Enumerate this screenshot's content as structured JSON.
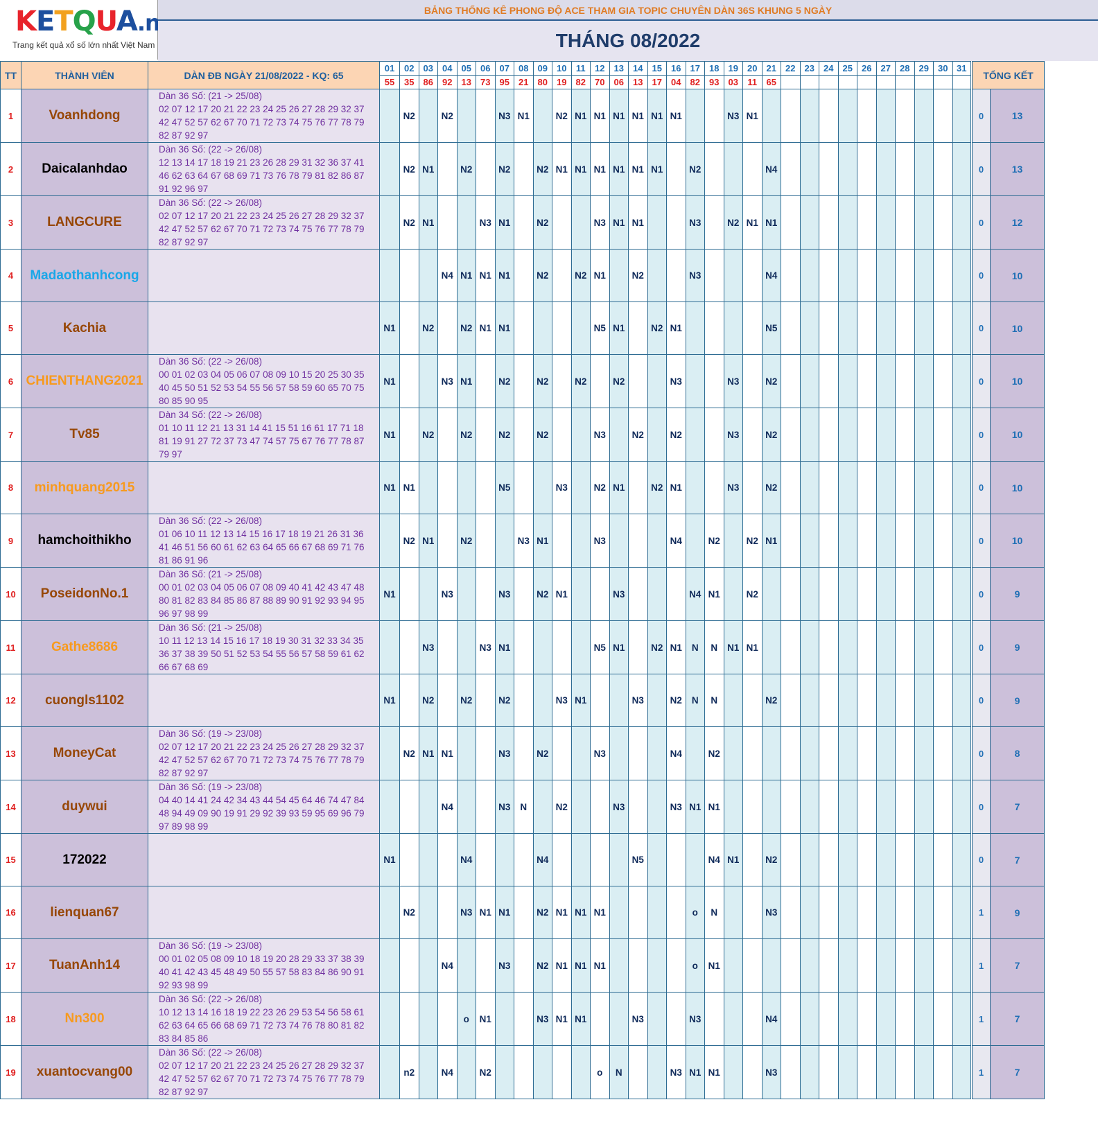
{
  "logo": {
    "brand_ket": "KETQUA",
    "brand_net": ".net",
    "tagline": "Trang kết quả xổ số lớn nhất Việt Nam"
  },
  "banner": "BẢNG THỐNG KÊ PHONG ĐỘ ACE THAM GIA TOPIC CHUYÊN DÀN 36S KHUNG 5 NGÀY",
  "month_title": "THÁNG 08/2022",
  "headers": {
    "tt": "TT",
    "member": "THÀNH VIÊN",
    "dan": "DÀN ĐB NGÀY 21/08/2022 - KQ: 65",
    "total": "TỔNG KẾT"
  },
  "days": [
    "01",
    "02",
    "03",
    "04",
    "05",
    "06",
    "07",
    "08",
    "09",
    "10",
    "11",
    "12",
    "13",
    "14",
    "15",
    "16",
    "17",
    "18",
    "19",
    "20",
    "21",
    "22",
    "23",
    "24",
    "25",
    "26",
    "27",
    "28",
    "29",
    "30",
    "31"
  ],
  "results": [
    "55",
    "35",
    "86",
    "92",
    "13",
    "73",
    "95",
    "21",
    "80",
    "19",
    "82",
    "70",
    "06",
    "13",
    "17",
    "04",
    "82",
    "93",
    "03",
    "11",
    "65",
    "",
    "",
    "",
    "",
    "",
    "",
    "",
    "",
    "",
    ""
  ],
  "rows": [
    {
      "tt": "1",
      "name": "Voanhdong",
      "color": "#974706",
      "dan": [
        "Dàn 36 Số: (21 -> 25/08)",
        "02 07 12 17 20 21 22 23 24 25 26 27 28 29 32 37",
        "42 47 52 57 62 67 70 71 72 73 74 75 76 77 78 79",
        "82 87 92 97"
      ],
      "cells": [
        "",
        "N2",
        "",
        "N2",
        "",
        "",
        "N3",
        "N1",
        "",
        "N2",
        "N1",
        "N1",
        "N1",
        "N1",
        "N1",
        "N1",
        "",
        "",
        "N3",
        "N1",
        "",
        "",
        "",
        "",
        "",
        "",
        "",
        "",
        "",
        "",
        ""
      ],
      "t1": "0",
      "t2": "13"
    },
    {
      "tt": "2",
      "name": "Daicalanhdao",
      "color": "#000000",
      "dan": [
        "Dàn 36 Số: (22 -> 26/08)",
        "12 13 14 17 18 19 21 23 26 28 29 31 32 36 37 41",
        "46 62 63 64 67 68 69 71 73 76 78 79 81 82 86 87",
        "91 92 96 97"
      ],
      "cells": [
        "",
        "N2",
        "N1",
        "",
        "N2",
        "",
        "N2",
        "",
        "N2",
        "N1",
        "N1",
        "N1",
        "N1",
        "N1",
        "N1",
        "",
        "N2",
        "",
        "",
        "",
        "N4",
        "",
        "",
        "",
        "",
        "",
        "",
        "",
        "",
        "",
        ""
      ],
      "t1": "0",
      "t2": "13"
    },
    {
      "tt": "3",
      "name": "LANGCURE",
      "color": "#974706",
      "dan": [
        "Dàn 36 Số: (22 -> 26/08)",
        "02 07 12 17 20 21 22 23 24 25 26 27 28 29 32 37",
        "42 47 52 57 62 67 70 71 72 73 74 75 76 77 78 79",
        "82 87 92 97"
      ],
      "cells": [
        "",
        "N2",
        "N1",
        "",
        "",
        "N3",
        "N1",
        "",
        "N2",
        "",
        "",
        "N3",
        "N1",
        "N1",
        "",
        "",
        "N3",
        "",
        "N2",
        "N1",
        "N1",
        "",
        "",
        "",
        "",
        "",
        "",
        "",
        "",
        "",
        ""
      ],
      "t1": "0",
      "t2": "12"
    },
    {
      "tt": "4",
      "name": "Madaothanhcong",
      "color": "#1aa7e8",
      "dan": [],
      "cells": [
        "",
        "",
        "",
        "N4",
        "N1",
        "N1",
        "N1",
        "",
        "N2",
        "",
        "N2",
        "N1",
        "",
        "N2",
        "",
        "",
        "N3",
        "",
        "",
        "",
        "N4",
        "",
        "",
        "",
        "",
        "",
        "",
        "",
        "",
        "",
        ""
      ],
      "t1": "0",
      "t2": "10"
    },
    {
      "tt": "5",
      "name": "Kachia",
      "color": "#974706",
      "dan": [],
      "cells": [
        "N1",
        "",
        "N2",
        "",
        "N2",
        "N1",
        "N1",
        "",
        "",
        "",
        "",
        "N5",
        "N1",
        "",
        "N2",
        "N1",
        "",
        "",
        "",
        "",
        "N5",
        "",
        "",
        "",
        "",
        "",
        "",
        "",
        "",
        "",
        ""
      ],
      "t1": "0",
      "t2": "10"
    },
    {
      "tt": "6",
      "name": "CHIENTHANG2021",
      "color": "#f79a1e",
      "dan": [
        "Dàn 36 Số: (22 -> 26/08)",
        "00 01 02 03 04 05 06 07 08 09 10 15 20 25 30 35",
        "40 45 50 51 52 53 54 55 56 57 58 59 60 65 70 75",
        "80 85 90 95"
      ],
      "cells": [
        "N1",
        "",
        "",
        "N3",
        "N1",
        "",
        "N2",
        "",
        "N2",
        "",
        "N2",
        "",
        "N2",
        "",
        "",
        "N3",
        "",
        "",
        "N3",
        "",
        "N2",
        "",
        "",
        "",
        "",
        "",
        "",
        "",
        "",
        "",
        ""
      ],
      "t1": "0",
      "t2": "10"
    },
    {
      "tt": "7",
      "name": "Tv85",
      "color": "#974706",
      "dan": [
        "Dàn 34 Số: (22 -> 26/08)",
        "01 10 11 12 21 13 31 14 41 15 51 16 61 17 71 18",
        "81 19 91 27 72 37 73 47 74 57 75 67 76 77 78 87",
        "79 97"
      ],
      "cells": [
        "N1",
        "",
        "N2",
        "",
        "N2",
        "",
        "N2",
        "",
        "N2",
        "",
        "",
        "N3",
        "",
        "N2",
        "",
        "N2",
        "",
        "",
        "N3",
        "",
        "N2",
        "",
        "",
        "",
        "",
        "",
        "",
        "",
        "",
        "",
        ""
      ],
      "t1": "0",
      "t2": "10"
    },
    {
      "tt": "8",
      "name": "minhquang2015",
      "color": "#f79a1e",
      "dan": [],
      "cells": [
        "N1",
        "N1",
        "",
        "",
        "",
        "",
        "N5",
        "",
        "",
        "N3",
        "",
        "N2",
        "N1",
        "",
        "N2",
        "N1",
        "",
        "",
        "N3",
        "",
        "N2",
        "",
        "",
        "",
        "",
        "",
        "",
        "",
        "",
        "",
        ""
      ],
      "t1": "0",
      "t2": "10"
    },
    {
      "tt": "9",
      "name": "hamchoithikho",
      "color": "#000000",
      "dan": [
        "Dàn 36 Số: (22 -> 26/08)",
        "01 06 10 11 12 13 14 15 16 17 18 19 21 26 31 36",
        "41 46 51 56 60 61 62 63 64 65 66 67 68 69 71 76",
        "81 86 91 96"
      ],
      "cells": [
        "",
        "N2",
        "N1",
        "",
        "N2",
        "",
        "",
        "N3",
        "N1",
        "",
        "",
        "N3",
        "",
        "",
        "",
        "N4",
        "",
        "N2",
        "",
        "N2",
        "N1",
        "",
        "",
        "",
        "",
        "",
        "",
        "",
        "",
        "",
        ""
      ],
      "t1": "0",
      "t2": "10"
    },
    {
      "tt": "10",
      "name": "PoseidonNo.1",
      "color": "#974706",
      "dan": [
        "Dàn 36 Số: (21 -> 25/08)",
        "00 01 02 03 04 05 06 07 08 09 40 41 42 43 47 48",
        "80 81 82 83 84 85 86 87 88 89 90 91 92 93 94 95",
        "96 97 98 99"
      ],
      "cells": [
        "N1",
        "",
        "",
        "N3",
        "",
        "",
        "N3",
        "",
        "N2",
        "N1",
        "",
        "",
        "N3",
        "",
        "",
        "",
        "N4",
        "N1",
        "",
        "N2",
        "",
        "",
        "",
        "",
        "",
        "",
        "",
        "",
        "",
        "",
        ""
      ],
      "t1": "0",
      "t2": "9"
    },
    {
      "tt": "11",
      "name": "Gathe8686",
      "color": "#f79a1e",
      "dan": [
        "Dàn 36 Số: (21 -> 25/08)",
        "10 11 12 13 14 15 16 17 18 19 30 31 32 33 34 35",
        "36 37 38 39 50 51 52 53 54 55 56 57 58 59 61 62",
        "66 67 68 69"
      ],
      "cells": [
        "",
        "",
        "N3",
        "",
        "",
        "N3",
        "N1",
        "",
        "",
        "",
        "",
        "N5",
        "N1",
        "",
        "N2",
        "N1",
        "N",
        "N",
        "N1",
        "N1",
        "",
        "",
        "",
        "",
        "",
        "",
        "",
        "",
        "",
        "",
        ""
      ],
      "t1": "0",
      "t2": "9"
    },
    {
      "tt": "12",
      "name": "cuongls1102",
      "color": "#974706",
      "dan": [],
      "cells": [
        "N1",
        "",
        "N2",
        "",
        "N2",
        "",
        "N2",
        "",
        "",
        "N3",
        "N1",
        "",
        "",
        "N3",
        "",
        "N2",
        "N",
        "N",
        "",
        "",
        "N2",
        "",
        "",
        "",
        "",
        "",
        "",
        "",
        "",
        "",
        ""
      ],
      "t1": "0",
      "t2": "9"
    },
    {
      "tt": "13",
      "name": "MoneyCat",
      "color": "#974706",
      "dan": [
        "Dàn 36 Số: (19 -> 23/08)",
        "02 07 12 17 20 21 22 23 24 25 26 27 28 29 32 37",
        "42 47 52 57 62 67 70 71 72 73 74 75 76 77 78 79",
        "82 87 92 97"
      ],
      "cells": [
        "",
        "N2",
        "N1",
        "N1",
        "",
        "",
        "N3",
        "",
        "N2",
        "",
        "",
        "N3",
        "",
        "",
        "",
        "N4",
        "",
        "N2",
        "",
        "",
        "",
        "",
        "",
        "",
        "",
        "",
        "",
        "",
        "",
        "",
        ""
      ],
      "t1": "0",
      "t2": "8"
    },
    {
      "tt": "14",
      "name": "duywui",
      "color": "#974706",
      "dan": [
        "Dàn 36 Số: (19 -> 23/08)",
        "04 40 14 41 24 42 34 43 44 54 45 64 46 74 47 84",
        "48 94 49 09 90 19 91 29 92 39 93 59 95 69 96 79",
        "97 89 98 99"
      ],
      "cells": [
        "",
        "",
        "",
        "N4",
        "",
        "",
        "N3",
        "N",
        "",
        "N2",
        "",
        "",
        "N3",
        "",
        "",
        "N3",
        "N1",
        "N1",
        "",
        "",
        "",
        "",
        "",
        "",
        "",
        "",
        "",
        "",
        "",
        "",
        ""
      ],
      "t1": "0",
      "t2": "7"
    },
    {
      "tt": "15",
      "name": "172022",
      "color": "#000000",
      "dan": [],
      "cells": [
        "N1",
        "",
        "",
        "",
        "N4",
        "",
        "",
        "",
        "N4",
        "",
        "",
        "",
        "",
        "N5",
        "",
        "",
        "",
        "N4",
        "N1",
        "",
        "N2",
        "",
        "",
        "",
        "",
        "",
        "",
        "",
        "",
        "",
        ""
      ],
      "t1": "0",
      "t2": "7"
    },
    {
      "tt": "16",
      "name": "lienquan67",
      "color": "#974706",
      "dan": [],
      "cells": [
        "",
        "N2",
        "",
        "",
        "N3",
        "N1",
        "N1",
        "",
        "N2",
        "N1",
        "N1",
        "N1",
        "",
        "",
        "",
        "",
        "o",
        "N",
        "",
        "",
        "N3",
        "",
        "",
        "",
        "",
        "",
        "",
        "",
        "",
        "",
        ""
      ],
      "t1": "1",
      "t2": "9"
    },
    {
      "tt": "17",
      "name": "TuanAnh14",
      "color": "#974706",
      "dan": [
        "Dàn 36 Số: (19 -> 23/08)",
        "00 01 02 05 08 09 10 18 19 20 28 29 33 37 38 39",
        "40 41 42 43 45 48 49 50 55 57 58 83 84 86 90 91",
        "92 93 98 99"
      ],
      "cells": [
        "",
        "",
        "",
        "N4",
        "",
        "",
        "N3",
        "",
        "N2",
        "N1",
        "N1",
        "N1",
        "",
        "",
        "",
        "",
        "o",
        "N1",
        "",
        "",
        "",
        "",
        "",
        "",
        "",
        "",
        "",
        "",
        "",
        "",
        ""
      ],
      "t1": "1",
      "t2": "7"
    },
    {
      "tt": "18",
      "name": "Nn300",
      "color": "#f79a1e",
      "dan": [
        "Dàn 36 Số: (22 -> 26/08)",
        "10 12 13 14 16 18 19 22 23 26 29 53 54 56 58 61",
        "62 63 64 65 66 68 69 71 72 73 74 76 78 80 81 82",
        "83 84 85 86"
      ],
      "cells": [
        "",
        "",
        "",
        "",
        "o",
        "N1",
        "",
        "",
        "N3",
        "N1",
        "N1",
        "",
        "",
        "N3",
        "",
        "",
        "N3",
        "",
        "",
        "",
        "N4",
        "",
        "",
        "",
        "",
        "",
        "",
        "",
        "",
        "",
        ""
      ],
      "t1": "1",
      "t2": "7"
    },
    {
      "tt": "19",
      "name": "xuantocvang00",
      "color": "#974706",
      "dan": [
        "Dàn 36 Số: (22 -> 26/08)",
        "02 07 12 17 20 21 22 23 24 25 26 27 28 29 32 37",
        "42 47 52 57 62 67 70 71 72 73 74 75 76 77 78 79",
        "82 87 92 97"
      ],
      "cells": [
        "",
        "n2",
        "",
        "N4",
        "",
        "N2",
        "",
        "",
        "",
        "",
        "",
        "o",
        "N",
        "",
        "",
        "N3",
        "N1",
        "N1",
        "",
        "",
        "N3",
        "",
        "",
        "",
        "",
        "",
        "",
        "",
        "",
        "",
        ""
      ],
      "t1": "1",
      "t2": "7"
    }
  ]
}
